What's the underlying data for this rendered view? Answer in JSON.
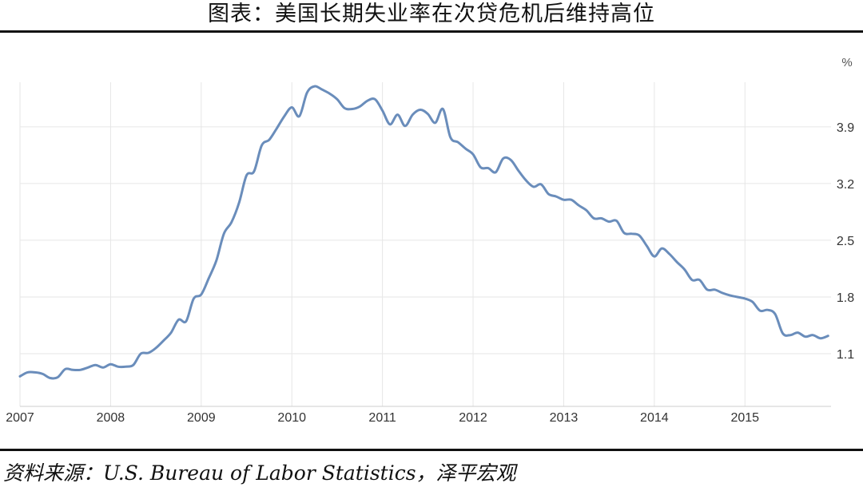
{
  "header": {
    "title": "图表：美国长期失业率在次贷危机后维持高位"
  },
  "footer": {
    "source": "资料来源：U.S. Bureau of Labor Statistics，泽平宏观"
  },
  "chart_data": {
    "type": "line",
    "title": "图表：美国长期失业率在次贷危机后维持高位",
    "xlabel": "",
    "ylabel": "",
    "y_unit": "%",
    "xlim": [
      2007.0,
      2015.95
    ],
    "ylim": [
      0.45,
      4.45
    ],
    "x_ticks": [
      2007,
      2008,
      2009,
      2010,
      2011,
      2012,
      2013,
      2014,
      2015
    ],
    "y_ticks": [
      1.1,
      1.8,
      2.5,
      3.2,
      3.9
    ],
    "grid": true,
    "legend": "none",
    "series": [
      {
        "color": "#6a8dbb",
        "x": [
          2007.0,
          2007.083,
          2007.167,
          2007.25,
          2007.333,
          2007.417,
          2007.5,
          2007.583,
          2007.667,
          2007.75,
          2007.833,
          2007.917,
          2008.0,
          2008.083,
          2008.167,
          2008.25,
          2008.333,
          2008.417,
          2008.5,
          2008.583,
          2008.667,
          2008.75,
          2008.833,
          2008.917,
          2009.0,
          2009.083,
          2009.167,
          2009.25,
          2009.333,
          2009.417,
          2009.5,
          2009.583,
          2009.667,
          2009.75,
          2009.833,
          2009.917,
          2010.0,
          2010.083,
          2010.167,
          2010.25,
          2010.333,
          2010.417,
          2010.5,
          2010.583,
          2010.667,
          2010.75,
          2010.833,
          2010.917,
          2011.0,
          2011.083,
          2011.167,
          2011.25,
          2011.333,
          2011.417,
          2011.5,
          2011.583,
          2011.667,
          2011.75,
          2011.833,
          2011.917,
          2012.0,
          2012.083,
          2012.167,
          2012.25,
          2012.333,
          2012.417,
          2012.5,
          2012.583,
          2012.667,
          2012.75,
          2012.833,
          2012.917,
          2013.0,
          2013.083,
          2013.167,
          2013.25,
          2013.333,
          2013.417,
          2013.5,
          2013.583,
          2013.667,
          2013.75,
          2013.833,
          2013.917,
          2014.0,
          2014.083,
          2014.167,
          2014.25,
          2014.333,
          2014.417,
          2014.5,
          2014.583,
          2014.667,
          2014.75,
          2014.833,
          2014.917,
          2015.0,
          2015.083,
          2015.167,
          2015.25,
          2015.333,
          2015.417,
          2015.5,
          2015.583,
          2015.667,
          2015.75,
          2015.833,
          2015.917
        ],
        "y": [
          0.82,
          0.87,
          0.87,
          0.85,
          0.8,
          0.81,
          0.91,
          0.9,
          0.9,
          0.93,
          0.96,
          0.93,
          0.97,
          0.94,
          0.94,
          0.96,
          1.1,
          1.11,
          1.17,
          1.26,
          1.36,
          1.52,
          1.5,
          1.78,
          1.83,
          2.03,
          2.25,
          2.58,
          2.72,
          2.96,
          3.3,
          3.35,
          3.67,
          3.74,
          3.88,
          4.03,
          4.14,
          4.03,
          4.32,
          4.4,
          4.36,
          4.31,
          4.24,
          4.13,
          4.12,
          4.15,
          4.22,
          4.24,
          4.1,
          3.93,
          4.05,
          3.91,
          4.05,
          4.11,
          4.06,
          3.95,
          4.12,
          3.77,
          3.71,
          3.63,
          3.56,
          3.4,
          3.39,
          3.34,
          3.51,
          3.49,
          3.36,
          3.24,
          3.16,
          3.19,
          3.07,
          3.04,
          3.0,
          3.0,
          2.93,
          2.87,
          2.77,
          2.77,
          2.73,
          2.74,
          2.59,
          2.58,
          2.56,
          2.43,
          2.3,
          2.4,
          2.33,
          2.23,
          2.14,
          2.01,
          2.01,
          1.89,
          1.89,
          1.85,
          1.82,
          1.8,
          1.78,
          1.74,
          1.63,
          1.64,
          1.59,
          1.35,
          1.33,
          1.36,
          1.31,
          1.33,
          1.29,
          1.32
        ]
      }
    ]
  }
}
